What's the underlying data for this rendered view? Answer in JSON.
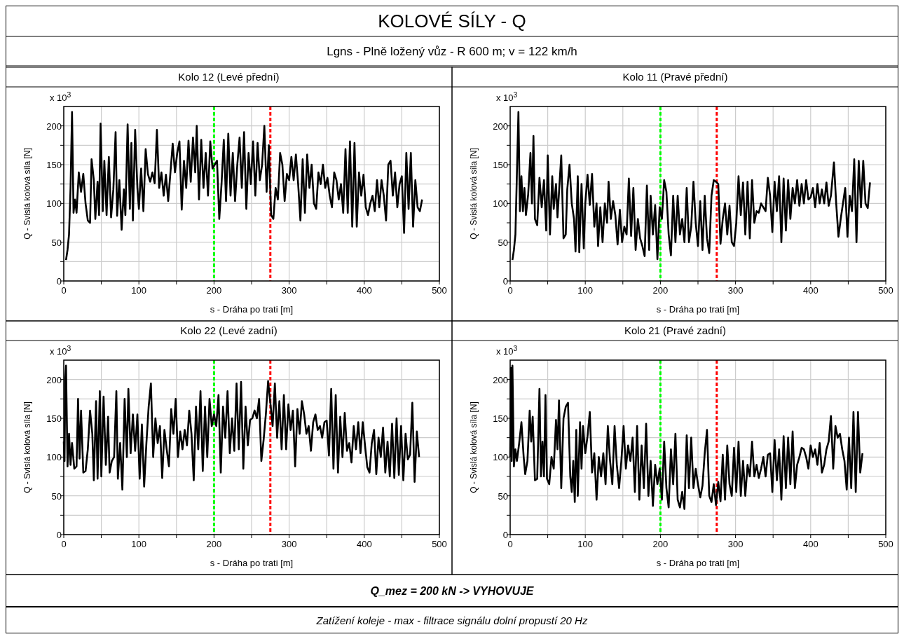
{
  "chart_data": [
    {
      "type": "other",
      "title": "KOLOVÉ SÍLY - Q",
      "subtitle": "Lgns - Plně ložený vůz - R 600 m; v = 122 km/h",
      "annotations": [
        "Q_mez = 200 kN -> VYHOVUJE",
        "Zatížení koleje - max - filtrace signálu dolní propustí 20 Hz"
      ]
    },
    {
      "type": "line",
      "title": "Kolo 12 (Levé přední)",
      "xlabel": "s - Dráha po trati [m]",
      "ylabel": "Q - Svislá kolová síla [N]",
      "annotations": [
        "x 10$^{3}$"
      ],
      "xlim": [
        0,
        500
      ],
      "ylim": [
        0,
        225
      ],
      "xticks": [
        0,
        {
          "value": 50,
          "label": null
        },
        100,
        {
          "value": 150,
          "label": null
        },
        200,
        {
          "value": 250,
          "label": null
        },
        300,
        {
          "value": 350,
          "label": null
        },
        400,
        {
          "value": 450,
          "label": null
        },
        500
      ],
      "yticks": [
        0,
        {
          "value": 25,
          "label": null
        },
        50,
        {
          "value": 75,
          "label": null
        },
        100,
        {
          "value": 125,
          "label": null
        },
        150,
        {
          "value": 175,
          "label": null
        },
        200
      ],
      "grid": true,
      "ref_lines": [
        {
          "axis": "x",
          "value": 200,
          "color": "#00ff00",
          "line_style": "dashed"
        },
        {
          "axis": "x",
          "value": 275,
          "color": "#ff0000",
          "line_style": "dashed"
        }
      ],
      "x": [
        3,
        5,
        7,
        9,
        11,
        13,
        15,
        17,
        20,
        23,
        26,
        29,
        32,
        35,
        37,
        40,
        42,
        45,
        47,
        49,
        52,
        54,
        57,
        60,
        63,
        66,
        69,
        71,
        74,
        77,
        80,
        82,
        85,
        88,
        90,
        92,
        95,
        98,
        100,
        103,
        106,
        109,
        112,
        115,
        118,
        121,
        124,
        127,
        130,
        133,
        136,
        139,
        142,
        145,
        148,
        151,
        154,
        157,
        160,
        163,
        166,
        169,
        172,
        175,
        177,
        180,
        183,
        186,
        189,
        192,
        195,
        198,
        201,
        204,
        207,
        210,
        213,
        216,
        219,
        222,
        225,
        228,
        231,
        234,
        237,
        240,
        243,
        246,
        249,
        252,
        255,
        258,
        261,
        264,
        267,
        270,
        273,
        276,
        279,
        282,
        285,
        288,
        291,
        294,
        297,
        300,
        303,
        306,
        309,
        312,
        315,
        318,
        321,
        324,
        327,
        330,
        333,
        336,
        339,
        342,
        345,
        348,
        351,
        354,
        357,
        360,
        363,
        366,
        369,
        372,
        375,
        378,
        381,
        384,
        387,
        390,
        393,
        396,
        399,
        402,
        405,
        408,
        411,
        414,
        417,
        420,
        423,
        426,
        429,
        432,
        435,
        438,
        441,
        444,
        447,
        450,
        453,
        456,
        459,
        462,
        465,
        468,
        471,
        474,
        477
      ],
      "series": [
        {
          "color": "#000000",
          "values": [
            27,
            40,
            60,
            120,
            218,
            88,
            105,
            88,
            140,
            115,
            138,
            100,
            78,
            75,
            157,
            130,
            80,
            128,
            85,
            203,
            90,
            155,
            85,
            160,
            82,
            118,
            192,
            84,
            130,
            66,
            118,
            85,
            202,
            93,
            178,
            78,
            195,
            120,
            93,
            145,
            90,
            170,
            138,
            128,
            140,
            126,
            195,
            120,
            140,
            110,
            137,
            103,
            140,
            177,
            140,
            165,
            180,
            92,
            155,
            120,
            181,
            128,
            185,
            140,
            200,
            105,
            182,
            120,
            165,
            110,
            180,
            145,
            150,
            155,
            80,
            125,
            182,
            103,
            190,
            110,
            165,
            103,
            150,
            185,
            120,
            192,
            93,
            165,
            125,
            180,
            110,
            178,
            130,
            150,
            200,
            115,
            175,
            85,
            80,
            120,
            105,
            165,
            150,
            103,
            138,
            130,
            160,
            130,
            163,
            125,
            78,
            157,
            88,
            163,
            120,
            150,
            100,
            93,
            140,
            125,
            150,
            120,
            133,
            110,
            95,
            140,
            130,
            105,
            125,
            88,
            170,
            88,
            180,
            70,
            178,
            70,
            140,
            110,
            137,
            95,
            85,
            100,
            110,
            90,
            130,
            95,
            130,
            110,
            78,
            150,
            155,
            110,
            140,
            95,
            125,
            135,
            62,
            165,
            93,
            165,
            70,
            130,
            95,
            90,
            105
          ]
        }
      ]
    },
    {
      "type": "line",
      "title": "Kolo 11 (Pravé přední)",
      "xlabel": "s - Dráha po trati [m]",
      "ylabel": "Q - Svislá kolová síla [N]",
      "annotations": [
        "x 10$^{3}$"
      ],
      "xlim": [
        0,
        500
      ],
      "ylim": [
        0,
        225
      ],
      "xticks": [
        0,
        {
          "value": 50,
          "label": null
        },
        100,
        {
          "value": 150,
          "label": null
        },
        200,
        {
          "value": 250,
          "label": null
        },
        300,
        {
          "value": 350,
          "label": null
        },
        400,
        {
          "value": 450,
          "label": null
        },
        500
      ],
      "yticks": [
        0,
        {
          "value": 25,
          "label": null
        },
        50,
        {
          "value": 75,
          "label": null
        },
        100,
        {
          "value": 125,
          "label": null
        },
        150,
        {
          "value": 175,
          "label": null
        },
        200
      ],
      "grid": true,
      "ref_lines": [
        {
          "axis": "x",
          "value": 200,
          "color": "#00ff00",
          "line_style": "dashed"
        },
        {
          "axis": "x",
          "value": 275,
          "color": "#ff0000",
          "line_style": "dashed"
        }
      ],
      "x": [
        3,
        5,
        7,
        9,
        11,
        13,
        15,
        17,
        19,
        21,
        24,
        27,
        29,
        31,
        33,
        36,
        39,
        42,
        45,
        48,
        50,
        53,
        56,
        58,
        61,
        63,
        66,
        68,
        71,
        74,
        76,
        79,
        82,
        85,
        87,
        90,
        92,
        95,
        98,
        100,
        103,
        106,
        109,
        112,
        115,
        117,
        120,
        123,
        126,
        129,
        131,
        134,
        137,
        140,
        143,
        146,
        149,
        152,
        155,
        158,
        161,
        164,
        167,
        170,
        173,
        176,
        179,
        182,
        185,
        187,
        190,
        193,
        196,
        199,
        202,
        205,
        208,
        211,
        214,
        217,
        220,
        223,
        226,
        229,
        232,
        235,
        238,
        241,
        244,
        247,
        250,
        253,
        256,
        259,
        262,
        265,
        268,
        271,
        274,
        277,
        280,
        283,
        286,
        289,
        292,
        295,
        298,
        301,
        304,
        307,
        310,
        313,
        316,
        319,
        322,
        325,
        328,
        331,
        334,
        337,
        340,
        343,
        346,
        349,
        352,
        355,
        358,
        361,
        364,
        367,
        370,
        373,
        376,
        379,
        382,
        385,
        388,
        391,
        394,
        397,
        400,
        403,
        406,
        409,
        412,
        415,
        418,
        421,
        424,
        427,
        431,
        434,
        437,
        440,
        443,
        446,
        449,
        452,
        455,
        458,
        461,
        464,
        467,
        470,
        473,
        476,
        479
      ],
      "series": [
        {
          "color": "#000000",
          "values": [
            27,
            40,
            60,
            140,
            218,
            90,
            135,
            90,
            120,
            85,
            112,
            165,
            100,
            187,
            80,
            72,
            133,
            95,
            130,
            65,
            162,
            60,
            135,
            93,
            125,
            82,
            130,
            162,
            55,
            60,
            118,
            150,
            100,
            80,
            38,
            135,
            37,
            125,
            42,
            100,
            137,
            98,
            138,
            70,
            100,
            45,
            95,
            50,
            100,
            75,
            128,
            80,
            103,
            85,
            47,
            92,
            50,
            70,
            60,
            132,
            58,
            120,
            40,
            80,
            55,
            45,
            32,
            123,
            40,
            110,
            60,
            98,
            28,
            95,
            80,
            130,
            115,
            60,
            33,
            110,
            50,
            110,
            60,
            80,
            50,
            120,
            50,
            70,
            128,
            75,
            45,
            103,
            40,
            110,
            55,
            36,
            110,
            130,
            128,
            125,
            48,
            80,
            100,
            60,
            97,
            50,
            45,
            75,
            135,
            85,
            127,
            60,
            128,
            55,
            130,
            75,
            90,
            88,
            100,
            95,
            90,
            133,
            110,
            63,
            128,
            90,
            135,
            50,
            132,
            65,
            130,
            80,
            120,
            100,
            130,
            97,
            125,
            100,
            130,
            105,
            108,
            120,
            95,
            125,
            100,
            118,
            100,
            127,
            97,
            110,
            153,
            100,
            57,
            80,
            100,
            120,
            57,
            110,
            90,
            157,
            50,
            155,
            95,
            155,
            100,
            94,
            127
          ]
        }
      ]
    },
    {
      "type": "line",
      "title": "Kolo 22 (Levé zadní)",
      "xlabel": "s - Dráha po trati [m]",
      "ylabel": "Q - Svislá kolová síla [N]",
      "annotations": [
        "x 10$^{3}$"
      ],
      "xlim": [
        0,
        500
      ],
      "ylim": [
        0,
        225
      ],
      "xticks": [
        0,
        {
          "value": 50,
          "label": null
        },
        100,
        {
          "value": 150,
          "label": null
        },
        200,
        {
          "value": 250,
          "label": null
        },
        300,
        {
          "value": 350,
          "label": null
        },
        400,
        {
          "value": 450,
          "label": null
        },
        500
      ],
      "yticks": [
        0,
        {
          "value": 25,
          "label": null
        },
        50,
        {
          "value": 75,
          "label": null
        },
        100,
        {
          "value": 125,
          "label": null
        },
        150,
        {
          "value": 175,
          "label": null
        },
        200
      ],
      "grid": true,
      "ref_lines": [
        {
          "axis": "x",
          "value": 200,
          "color": "#00ff00",
          "line_style": "dashed"
        },
        {
          "axis": "x",
          "value": 275,
          "color": "#ff0000",
          "line_style": "dashed"
        }
      ],
      "x": [
        0,
        1,
        2,
        3,
        5,
        7,
        9,
        11,
        14,
        17,
        19,
        21,
        23,
        26,
        29,
        32,
        35,
        38,
        40,
        43,
        45,
        48,
        50,
        53,
        56,
        59,
        61,
        64,
        67,
        70,
        72,
        75,
        78,
        81,
        84,
        86,
        89,
        92,
        95,
        98,
        101,
        104,
        107,
        110,
        113,
        116,
        119,
        122,
        125,
        128,
        131,
        134,
        137,
        140,
        143,
        146,
        149,
        152,
        155,
        158,
        161,
        164,
        167,
        170,
        173,
        176,
        179,
        182,
        185,
        188,
        191,
        194,
        197,
        200,
        203,
        206,
        209,
        212,
        215,
        218,
        221,
        224,
        227,
        230,
        233,
        236,
        239,
        242,
        245,
        248,
        251,
        254,
        257,
        260,
        263,
        266,
        269,
        272,
        275,
        278,
        281,
        284,
        287,
        290,
        293,
        296,
        299,
        302,
        305,
        308,
        311,
        314,
        317,
        320,
        323,
        326,
        329,
        332,
        335,
        338,
        341,
        344,
        347,
        350,
        353,
        356,
        359,
        362,
        365,
        368,
        371,
        374,
        377,
        380,
        383,
        386,
        389,
        392,
        395,
        398,
        401,
        404,
        407,
        410,
        413,
        416,
        419,
        422,
        425,
        428,
        431,
        434,
        437,
        440,
        443,
        446,
        449,
        452,
        455,
        458,
        461,
        464,
        467,
        470,
        473
      ],
      "series": [
        {
          "color": "#000000",
          "values": [
            120,
            95,
            200,
            218,
            88,
            130,
            90,
            118,
            85,
            88,
            175,
            98,
            160,
            80,
            82,
            110,
            160,
            130,
            70,
            172,
            72,
            185,
            75,
            178,
            90,
            152,
            80,
            95,
            100,
            185,
            72,
            118,
            58,
            175,
            100,
            188,
            105,
            155,
            108,
            155,
            72,
            142,
            62,
            118,
            165,
            195,
            100,
            150,
            118,
            140,
            73,
            135,
            110,
            88,
            162,
            130,
            175,
            100,
            133,
            110,
            135,
            115,
            160,
            130,
            70,
            165,
            110,
            185,
            82,
            165,
            100,
            175,
            140,
            155,
            140,
            180,
            80,
            165,
            125,
            185,
            105,
            150,
            108,
            195,
            110,
            197,
            85,
            165,
            115,
            148,
            150,
            160,
            150,
            175,
            95,
            122,
            155,
            198,
            170,
            140,
            195,
            125,
            172,
            110,
            180,
            110,
            168,
            135,
            160,
            88,
            162,
            130,
            172,
            155,
            130,
            140,
            108,
            145,
            155,
            135,
            140,
            125,
            145,
            147,
            102,
            188,
            85,
            180,
            80,
            152,
            100,
            157,
            108,
            118,
            93,
            140,
            110,
            145,
            105,
            145,
            115,
            87,
            80,
            118,
            135,
            78,
            125,
            100,
            138,
            80,
            120,
            75,
            143,
            73,
            150,
            77,
            140,
            70,
            130,
            97,
            103,
            170,
            68,
            133,
            100
          ]
        }
      ]
    },
    {
      "type": "line",
      "title": "Kolo 21 (Pravé zadní)",
      "xlabel": "s - Dráha po trati [m]",
      "ylabel": "Q - Svislá kolová síla [N]",
      "annotations": [
        "x 10$^{3}$"
      ],
      "xlim": [
        0,
        500
      ],
      "ylim": [
        0,
        225
      ],
      "xticks": [
        0,
        {
          "value": 50,
          "label": null
        },
        100,
        {
          "value": 150,
          "label": null
        },
        200,
        {
          "value": 250,
          "label": null
        },
        300,
        {
          "value": 350,
          "label": null
        },
        400,
        {
          "value": 450,
          "label": null
        },
        500
      ],
      "yticks": [
        0,
        {
          "value": 25,
          "label": null
        },
        50,
        {
          "value": 75,
          "label": null
        },
        100,
        {
          "value": 125,
          "label": null
        },
        150,
        {
          "value": 175,
          "label": null
        },
        200
      ],
      "grid": true,
      "ref_lines": [
        {
          "axis": "x",
          "value": 200,
          "color": "#00ff00",
          "line_style": "dashed"
        },
        {
          "axis": "x",
          "value": 275,
          "color": "#ff0000",
          "line_style": "dashed"
        }
      ],
      "x": [
        0,
        1,
        2,
        3,
        5,
        7,
        9,
        12,
        15,
        18,
        20,
        23,
        26,
        28,
        30,
        33,
        36,
        39,
        41,
        43,
        45,
        47,
        49,
        52,
        55,
        58,
        61,
        63,
        65,
        68,
        71,
        74,
        77,
        80,
        82,
        84,
        86,
        88,
        90,
        93,
        95,
        97,
        100,
        103,
        106,
        109,
        112,
        115,
        118,
        121,
        124,
        127,
        130,
        133,
        136,
        139,
        142,
        145,
        148,
        151,
        154,
        157,
        160,
        163,
        166,
        169,
        172,
        175,
        178,
        181,
        184,
        187,
        190,
        193,
        196,
        199,
        202,
        205,
        208,
        211,
        214,
        217,
        220,
        223,
        226,
        229,
        232,
        235,
        238,
        241,
        244,
        247,
        250,
        253,
        256,
        259,
        262,
        265,
        268,
        271,
        274,
        277,
        280,
        283,
        286,
        289,
        292,
        295,
        298,
        301,
        304,
        307,
        310,
        313,
        316,
        319,
        322,
        325,
        328,
        331,
        334,
        337,
        340,
        343,
        346,
        349,
        352,
        355,
        358,
        361,
        364,
        367,
        370,
        373,
        376,
        379,
        382,
        385,
        388,
        391,
        394,
        397,
        400,
        403,
        406,
        409,
        412,
        415,
        418,
        421,
        424,
        427,
        430,
        433,
        436,
        439,
        442,
        445,
        448,
        451,
        454,
        457,
        460,
        463,
        466,
        469
      ],
      "series": [
        {
          "color": "#000000",
          "values": [
            100,
            215,
            95,
            218,
            88,
            110,
            95,
            118,
            145,
            100,
            78,
            95,
            160,
            120,
            152,
            70,
            72,
            188,
            75,
            120,
            75,
            180,
            72,
            65,
            100,
            85,
            148,
            110,
            173,
            60,
            150,
            165,
            170,
            75,
            55,
            95,
            42,
            135,
            50,
            145,
            85,
            140,
            105,
            127,
            158,
            80,
            105,
            45,
            100,
            75,
            105,
            65,
            140,
            95,
            65,
            140,
            90,
            60,
            95,
            140,
            85,
            115,
            95,
            125,
            55,
            140,
            45,
            115,
            60,
            143,
            50,
            95,
            37,
            90,
            65,
            85,
            45,
            120,
            60,
            35,
            110,
            65,
            130,
            45,
            35,
            55,
            33,
            128,
            60,
            125,
            60,
            85,
            65,
            48,
            63,
            105,
            135,
            50,
            42,
            65,
            38,
            68,
            43,
            103,
            45,
            115,
            65,
            50,
            112,
            55,
            120,
            50,
            95,
            50,
            90,
            75,
            120,
            75,
            90,
            73,
            85,
            100,
            75,
            103,
            105,
            55,
            122,
            70,
            110,
            45,
            127,
            60,
            125,
            65,
            133,
            60,
            90,
            100,
            112,
            110,
            100,
            85,
            115,
            100,
            110,
            90,
            118,
            80,
            90,
            110,
            120,
            153,
            85,
            140,
            125,
            130,
            110,
            95,
            58,
            125,
            60,
            158,
            55,
            158,
            80,
            105
          ]
        }
      ]
    }
  ]
}
